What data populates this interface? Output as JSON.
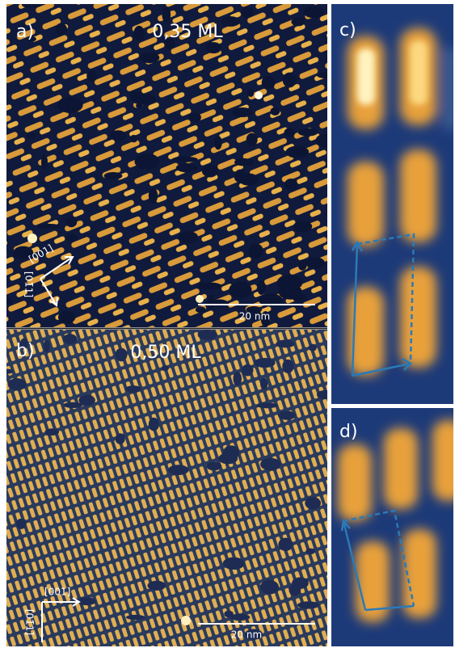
{
  "panels": [
    {
      "label": "a)",
      "coverage": "0,35 ML",
      "directions": [
        "[001]",
        "[01̄1]"
      ],
      "scale_bar": "20 nm"
    },
    {
      "label": "b)",
      "coverage": "0,50 ML",
      "directions": [
        "[001]",
        "[01̄1]"
      ],
      "scale_bar": "20 nm"
    },
    {
      "label": "c)"
    },
    {
      "label": "d)"
    }
  ]
}
